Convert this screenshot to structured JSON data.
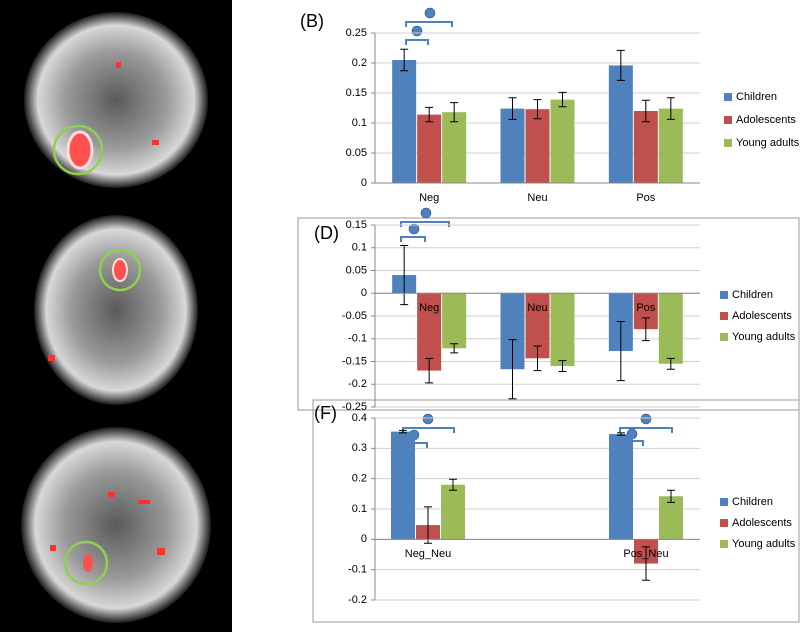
{
  "chart_data": [
    {
      "type": "bar",
      "title": "(B)",
      "categories": [
        "Neg",
        "Neu",
        "Pos"
      ],
      "series": [
        {
          "name": "Children",
          "color": "#4f81bd",
          "values": [
            0.205,
            0.124,
            0.196
          ],
          "errors": [
            0.018,
            0.018,
            0.025
          ]
        },
        {
          "name": "Adolescents",
          "color": "#c0504d",
          "values": [
            0.114,
            0.123,
            0.12
          ],
          "errors": [
            0.012,
            0.016,
            0.018
          ]
        },
        {
          "name": "Young adults",
          "color": "#9bbb59",
          "values": [
            0.118,
            0.139,
            0.124
          ],
          "errors": [
            0.016,
            0.012,
            0.018
          ]
        }
      ],
      "ylim": [
        0,
        0.25
      ],
      "yticks": [
        0,
        0.05,
        0.1,
        0.15,
        0.2,
        0.25
      ],
      "grid": true,
      "legend": "right"
    },
    {
      "type": "bar",
      "title": "(D)",
      "categories": [
        "Neg",
        "Neu",
        "Pos"
      ],
      "series": [
        {
          "name": "Children",
          "color": "#4f81bd",
          "values": [
            0.04,
            -0.167,
            -0.127
          ],
          "errors": [
            0.065,
            0.065,
            0.065
          ]
        },
        {
          "name": "Adolescents",
          "color": "#c0504d",
          "values": [
            -0.17,
            -0.143,
            -0.079
          ],
          "errors": [
            0.027,
            0.027,
            0.025
          ]
        },
        {
          "name": "Young adults",
          "color": "#9bbb59",
          "values": [
            -0.121,
            -0.16,
            -0.155
          ],
          "errors": [
            0.01,
            0.012,
            0.012
          ]
        }
      ],
      "ylim": [
        -0.25,
        0.15
      ],
      "yticks": [
        -0.25,
        -0.2,
        -0.15,
        -0.1,
        -0.05,
        0,
        0.05,
        0.1,
        0.15
      ],
      "grid": true,
      "legend": "right"
    },
    {
      "type": "bar",
      "title": "(F)",
      "categories": [
        "Neg_Neu",
        "Pos_Neu"
      ],
      "series": [
        {
          "name": "Children",
          "color": "#4f81bd",
          "values": [
            0.355,
            0.347
          ],
          "errors": [
            0.004,
            0.004
          ]
        },
        {
          "name": "Adolescents",
          "color": "#c0504d",
          "values": [
            0.047,
            -0.08
          ],
          "errors": [
            0.06,
            0.055
          ]
        },
        {
          "name": "Young adults",
          "color": "#9bbb59",
          "values": [
            0.18,
            0.142
          ],
          "errors": [
            0.018,
            0.02
          ]
        }
      ],
      "ylim": [
        -0.2,
        0.4
      ],
      "yticks": [
        -0.2,
        -0.1,
        0,
        0.1,
        0.2,
        0.3,
        0.4
      ],
      "grid": true,
      "legend": "right"
    }
  ]
}
